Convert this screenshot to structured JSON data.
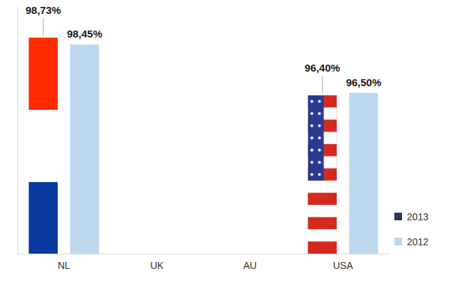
{
  "chart_data": {
    "type": "bar",
    "categories": [
      "NL",
      "UK",
      "AU",
      "USA"
    ],
    "series": [
      {
        "name": "2013",
        "color": "#263a57",
        "values": [
          98.73,
          null,
          null,
          96.4
        ],
        "value_labels": [
          "98,73%",
          null,
          null,
          "96,40%"
        ]
      },
      {
        "name": "2012",
        "color": "#bdd7ee",
        "values": [
          98.45,
          null,
          null,
          96.5
        ],
        "value_labels": [
          "98,45%",
          null,
          null,
          "96,50%"
        ]
      }
    ],
    "ylim": [
      90,
      100
    ],
    "yticks": [],
    "tick_labels": "x",
    "data_labels": true,
    "legend": "right",
    "grid": false
  }
}
